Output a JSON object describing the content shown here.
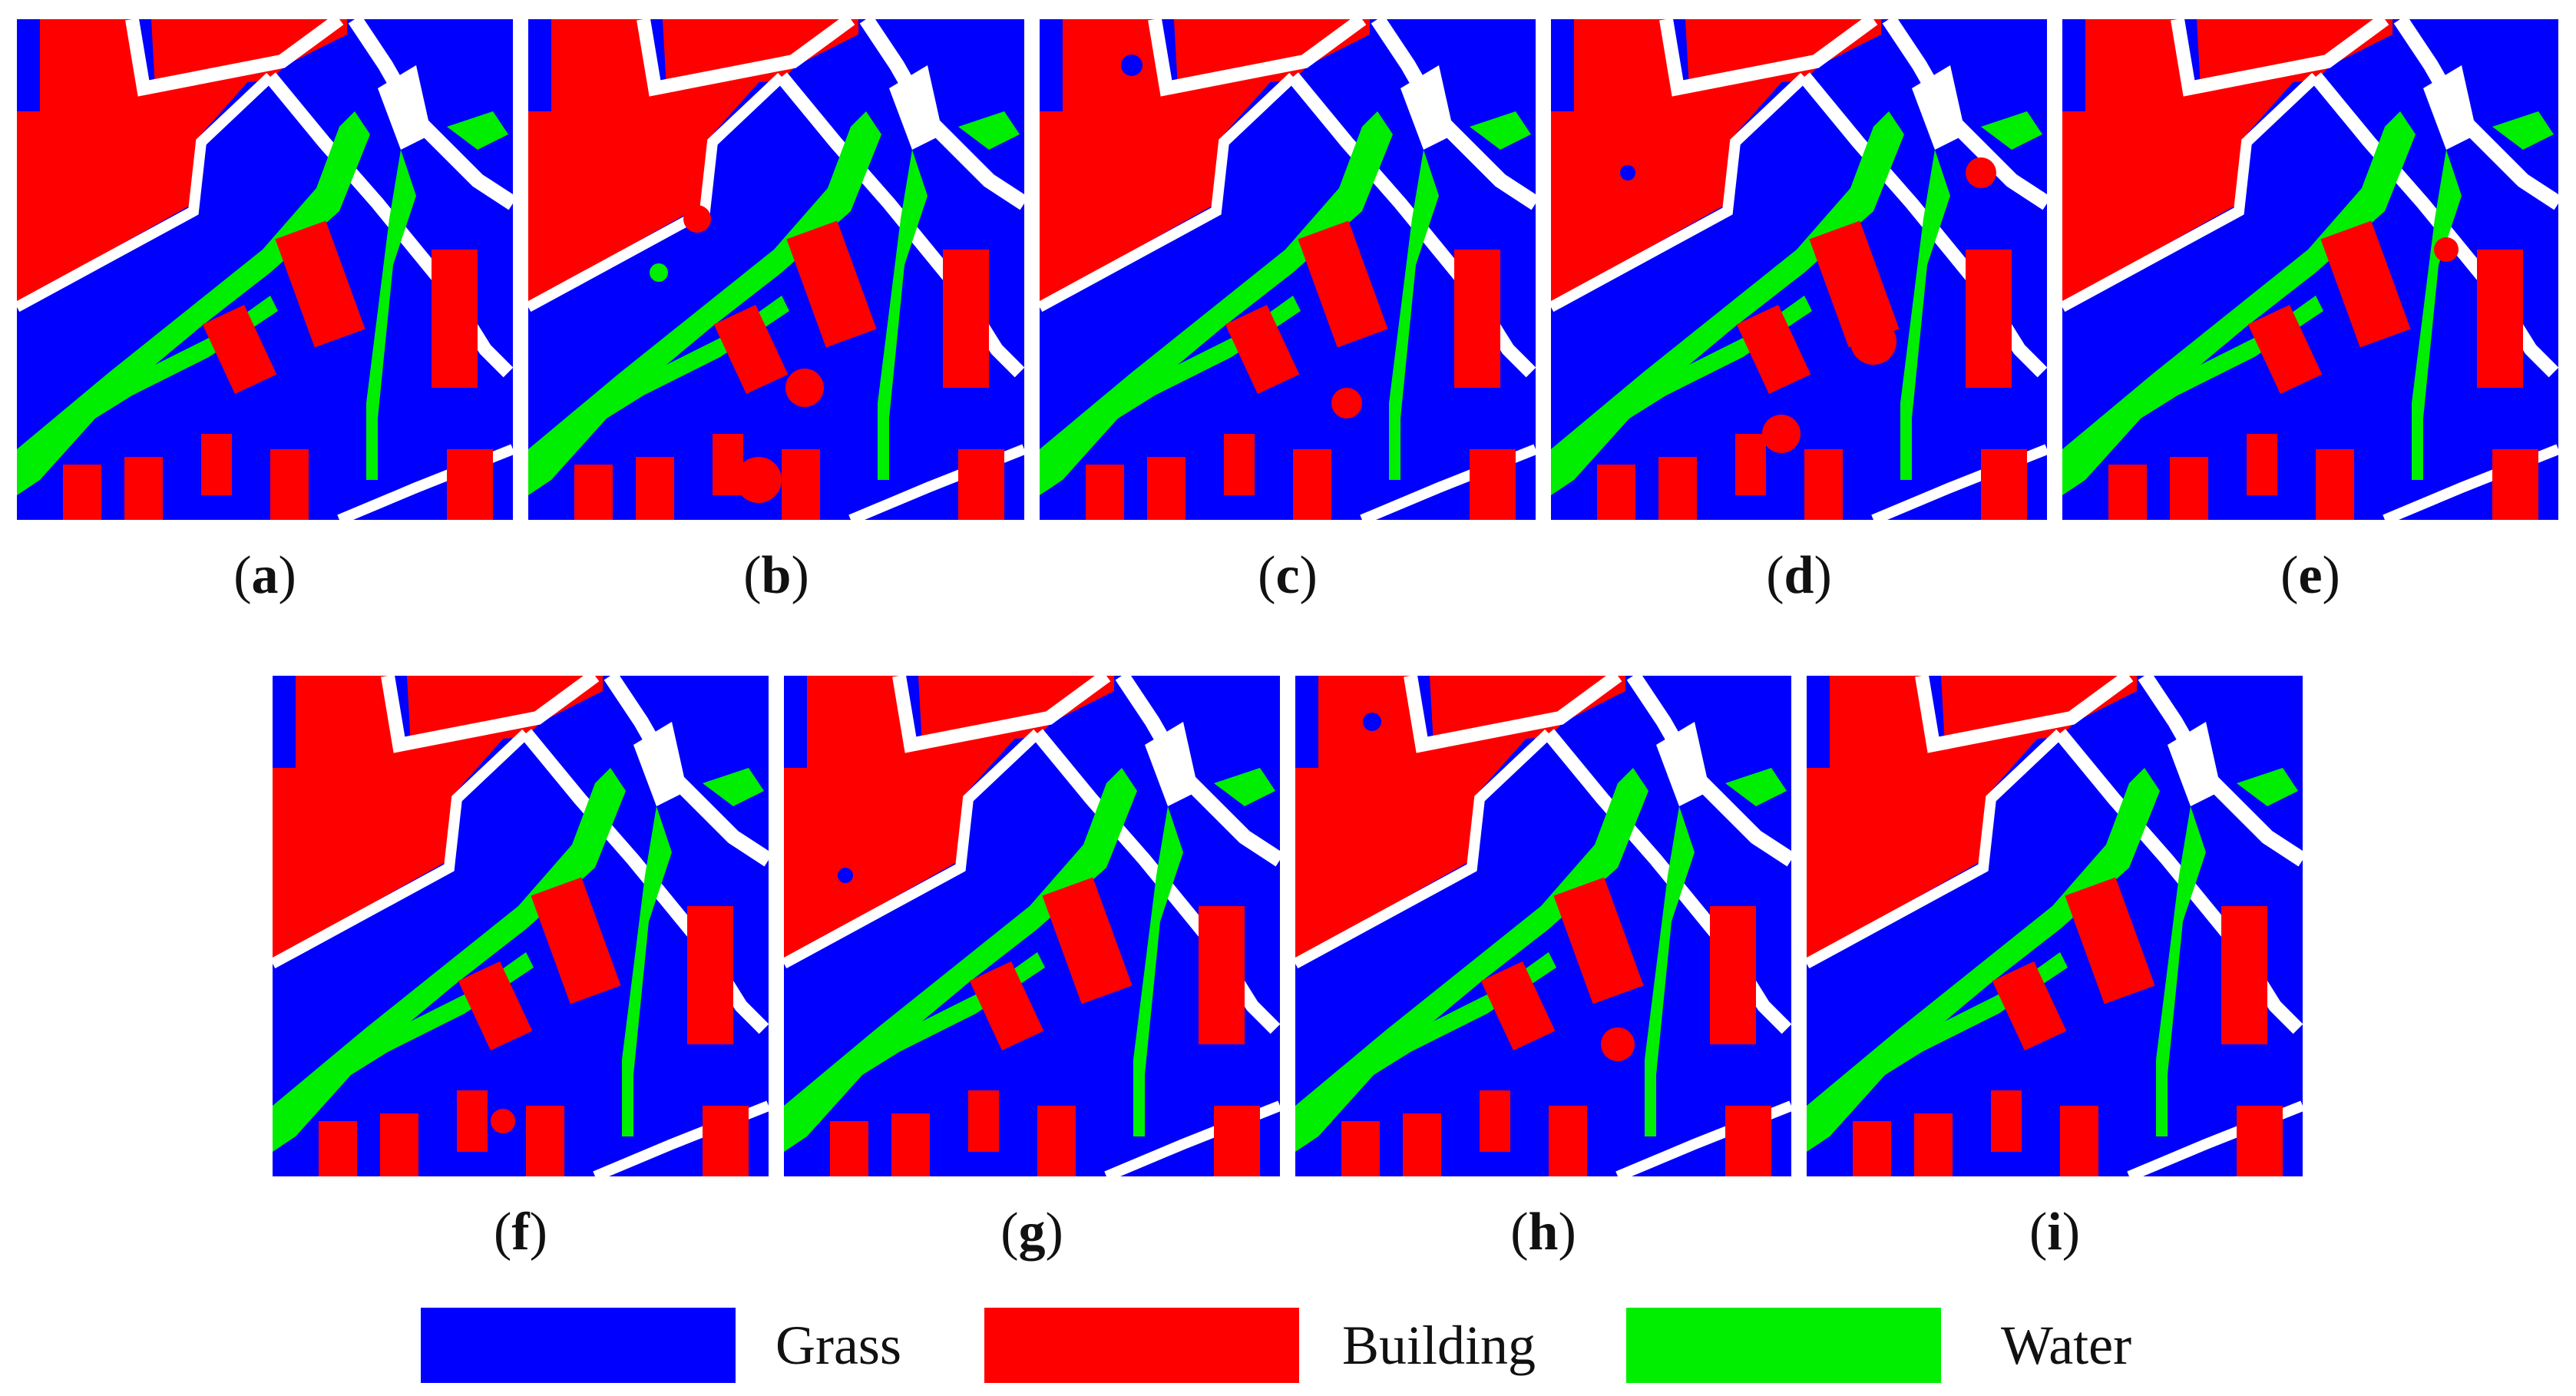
{
  "colors": {
    "grass": "#0000ff",
    "building": "#ff0000",
    "water": "#00ee00",
    "road": "#ffffff"
  },
  "panels": [
    {
      "id": "a",
      "label": "a"
    },
    {
      "id": "b",
      "label": "b"
    },
    {
      "id": "c",
      "label": "c"
    },
    {
      "id": "d",
      "label": "d"
    },
    {
      "id": "e",
      "label": "e"
    },
    {
      "id": "f",
      "label": "f"
    },
    {
      "id": "g",
      "label": "g"
    },
    {
      "id": "h",
      "label": "h"
    },
    {
      "id": "i",
      "label": "i"
    }
  ],
  "legend": [
    {
      "label": "Grass",
      "color": "#0000ff"
    },
    {
      "label": "Building",
      "color": "#ff0000"
    },
    {
      "label": "Water",
      "color": "#00ee00"
    }
  ]
}
